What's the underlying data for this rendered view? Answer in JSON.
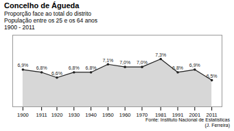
{
  "chart_data": {
    "type": "area",
    "title": "Concelho de Águeda",
    "subtitle": [
      "Proporção face ao total do distrito",
      "População entre os 25 e os 64 anos",
      "1900 - 2011"
    ],
    "caption": [
      "Fonte: Instituto Nacional de Estatísticas",
      "(J. Ferreira)"
    ],
    "x": [
      1900,
      1911,
      1920,
      1930,
      1940,
      1950,
      1960,
      1970,
      1981,
      1991,
      2001,
      2011
    ],
    "values": [
      6.9,
      6.8,
      6.6,
      6.8,
      6.8,
      7.1,
      7.0,
      7.0,
      7.3,
      6.8,
      6.9,
      6.5
    ],
    "value_labels": [
      "6,9%",
      "6,8%",
      "6,6%",
      "6,8%",
      "6,8%",
      "7,1%",
      "7,0%",
      "7,0%",
      "7,3%",
      "6,8%",
      "6,9%",
      "6,5%"
    ],
    "color": "#222222",
    "marker": "circle",
    "xlim": [
      1894,
      2017
    ],
    "xticks": [
      1900,
      1911,
      1920,
      1930,
      1940,
      1950,
      1960,
      1970,
      1981,
      1991,
      2001,
      2011
    ],
    "ylim": [
      5.5,
      8.2
    ],
    "yticks": [],
    "tick_labels": "x",
    "data_labels": true
  }
}
